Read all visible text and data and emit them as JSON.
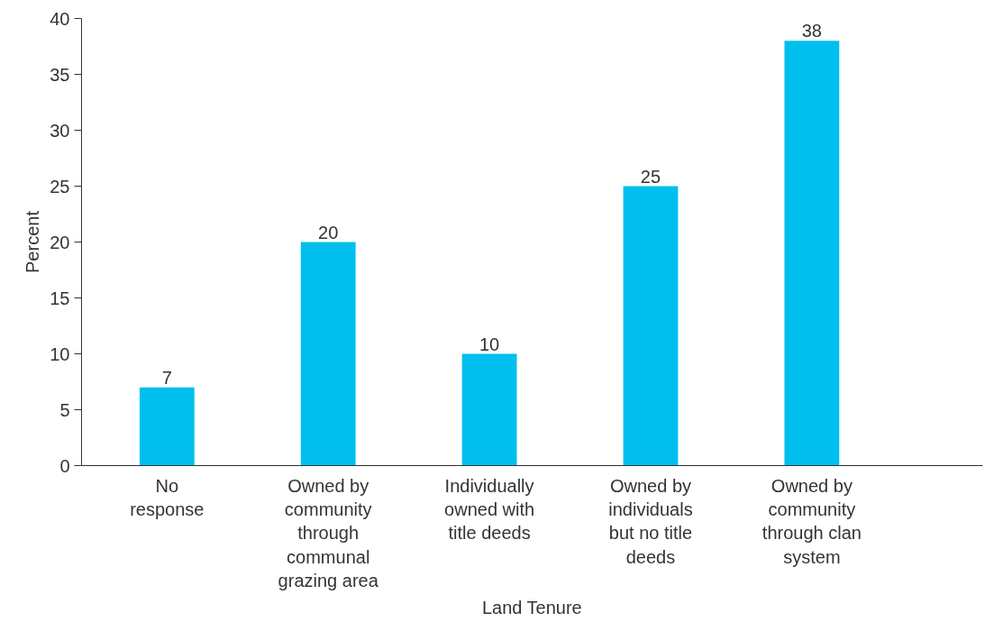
{
  "chart_data": {
    "type": "bar",
    "xlabel": "Land Tenure",
    "ylabel": "Percent",
    "categories": [
      "No\nresponse",
      "Owned by\ncommunity\nthrough\ncommunal\ngrazing area",
      "Individually\nowned with\ntitle deeds",
      "Owned by\nindividuals\nbut no title\ndeeds",
      "Owned by\ncommunity\nthrough clan\nsystem"
    ],
    "values": [
      7,
      20,
      10,
      25,
      38
    ],
    "color": "#00bfef",
    "data_labels": true,
    "ylim": [
      0,
      40
    ],
    "yticks": [
      0,
      5,
      10,
      15,
      20,
      25,
      30,
      35,
      40
    ],
    "grid": false
  }
}
